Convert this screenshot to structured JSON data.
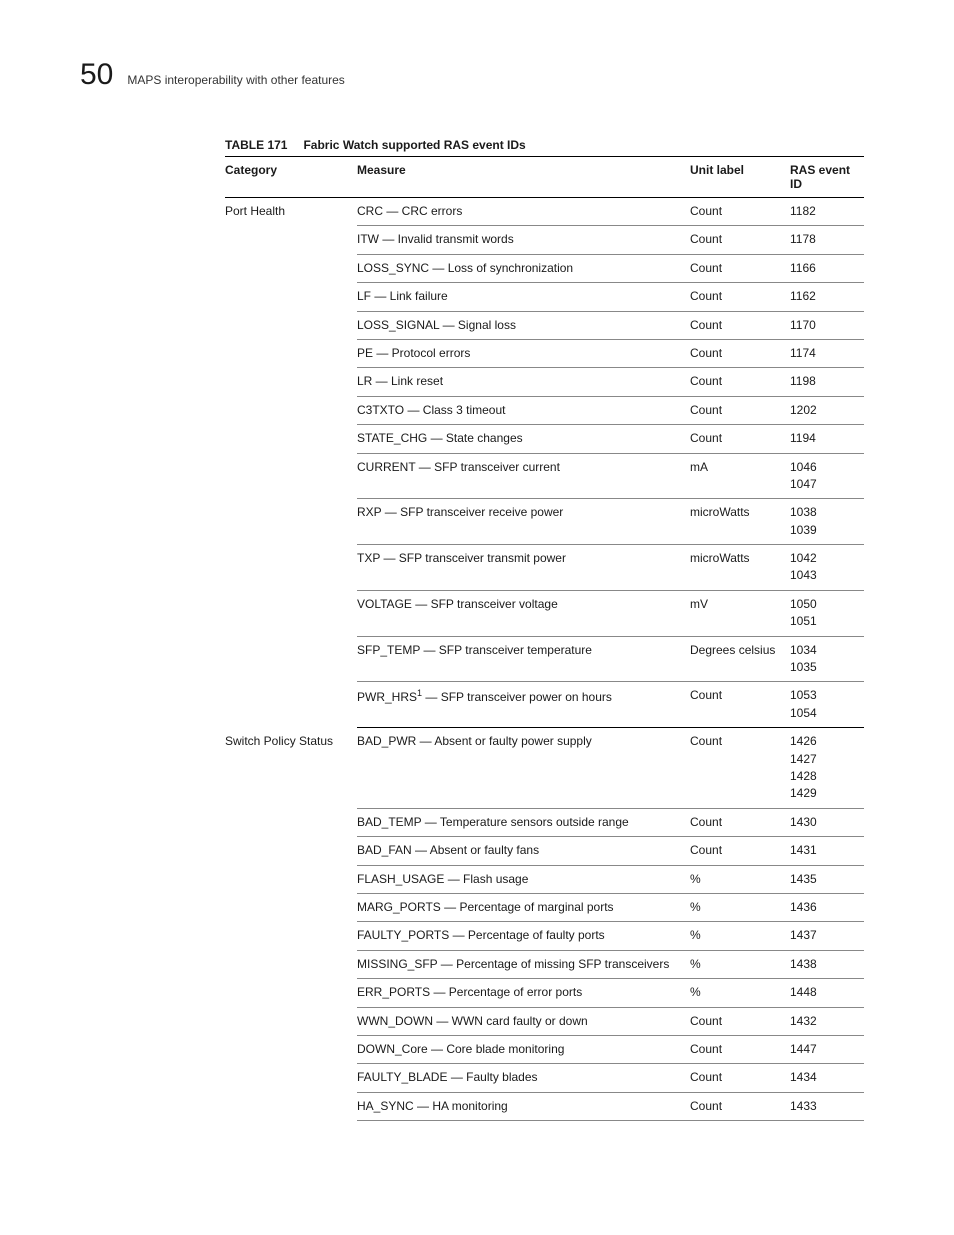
{
  "header": {
    "chapter_number": "50",
    "chapter_title": "MAPS interoperability with other features"
  },
  "table": {
    "label": "TABLE 171",
    "title": "Fabric Watch supported RAS event IDs",
    "columns": {
      "category": "Category",
      "measure": "Measure",
      "unit": "Unit label",
      "ras": "RAS event ID"
    }
  },
  "groups": [
    {
      "category": "Port Health",
      "rows": [
        {
          "measure": "CRC — CRC errors",
          "unit": "Count",
          "ras": "1182"
        },
        {
          "measure": "ITW — Invalid transmit words",
          "unit": "Count",
          "ras": "1178"
        },
        {
          "measure": "LOSS_SYNC — Loss of synchronization",
          "unit": "Count",
          "ras": "1166"
        },
        {
          "measure": "LF — Link failure",
          "unit": "Count",
          "ras": "1162"
        },
        {
          "measure": "LOSS_SIGNAL — Signal loss",
          "unit": "Count",
          "ras": "1170"
        },
        {
          "measure": "PE — Protocol errors",
          "unit": "Count",
          "ras": "1174"
        },
        {
          "measure": "LR — Link reset",
          "unit": "Count",
          "ras": "1198"
        },
        {
          "measure": "C3TXTO — Class 3 timeout",
          "unit": "Count",
          "ras": "1202"
        },
        {
          "measure": "STATE_CHG — State changes",
          "unit": "Count",
          "ras": "1194"
        },
        {
          "measure": "CURRENT — SFP transceiver current",
          "unit": "mA",
          "ras": "1046\n1047"
        },
        {
          "measure": "RXP — SFP transceiver receive power",
          "unit": "microWatts",
          "ras": "1038\n1039"
        },
        {
          "measure": "TXP — SFP transceiver transmit power",
          "unit": "microWatts",
          "ras": "1042\n1043"
        },
        {
          "measure": "VOLTAGE — SFP transceiver voltage",
          "unit": "mV",
          "ras": "1050\n1051"
        },
        {
          "measure": "SFP_TEMP — SFP transceiver temperature",
          "unit": "Degrees celsius",
          "ras": "1034\n1035"
        },
        {
          "measure_html": "PWR_HRS<span class=\"sup\">1</span> — SFP transceiver power on hours",
          "unit": "Count",
          "ras": "1053\n1054"
        }
      ]
    },
    {
      "category": "Switch Policy Status",
      "rows": [
        {
          "measure": "BAD_PWR — Absent or faulty power supply",
          "unit": "Count",
          "ras": "1426\n1427\n1428\n1429"
        },
        {
          "measure": "BAD_TEMP — Temperature sensors outside range",
          "unit": "Count",
          "ras": "1430"
        },
        {
          "measure": "BAD_FAN — Absent or faulty fans",
          "unit": "Count",
          "ras": "1431"
        },
        {
          "measure": "FLASH_USAGE — Flash usage",
          "unit": "%",
          "ras": "1435"
        },
        {
          "measure": "MARG_PORTS — Percentage of marginal ports",
          "unit": "%",
          "ras": "1436"
        },
        {
          "measure": "FAULTY_PORTS — Percentage of faulty ports",
          "unit": "%",
          "ras": "1437"
        },
        {
          "measure": "MISSING_SFP — Percentage of missing SFP transceivers",
          "unit": "%",
          "ras": "1438"
        },
        {
          "measure": "ERR_PORTS — Percentage of error ports",
          "unit": "%",
          "ras": "1448"
        },
        {
          "measure": "WWN_DOWN — WWN card faulty or down",
          "unit": "Count",
          "ras": "1432"
        },
        {
          "measure": "DOWN_Core — Core blade monitoring",
          "unit": "Count",
          "ras": "1447"
        },
        {
          "measure": "FAULTY_BLADE — Faulty blades",
          "unit": "Count",
          "ras": "1434"
        },
        {
          "measure": "HA_SYNC — HA monitoring",
          "unit": "Count",
          "ras": "1433"
        }
      ]
    }
  ]
}
